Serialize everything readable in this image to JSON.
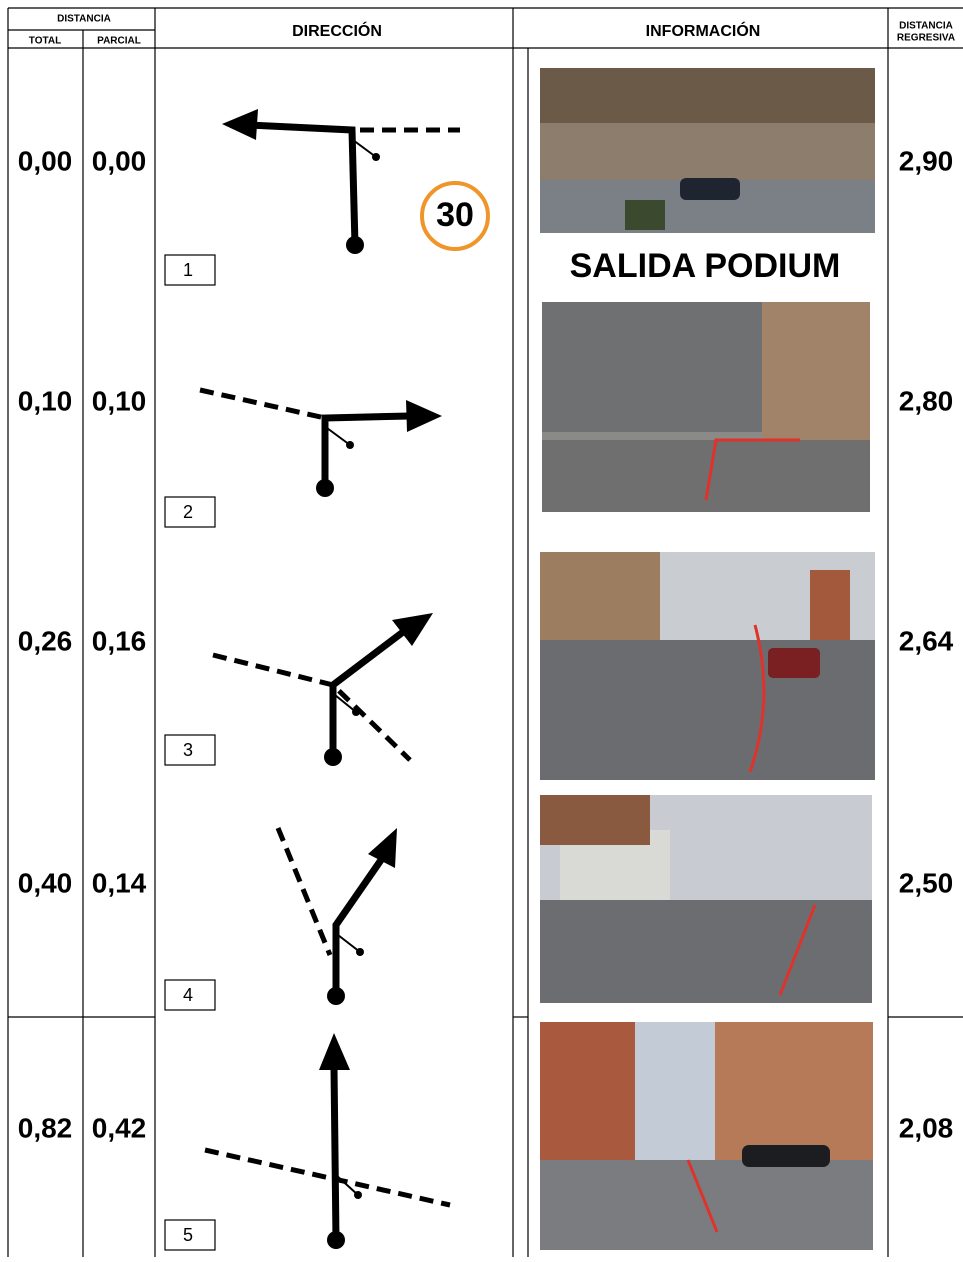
{
  "header": {
    "distancia": "DISTANCIA",
    "total": "TOTAL",
    "parcial": "PARCIAL",
    "direccion": "DIRECCIÓN",
    "informacion": "INFORMACIÓN",
    "regresiva_1": "DISTANCIA",
    "regresiva_2": "REGRESIVA"
  },
  "rows": [
    {
      "total": "0,00",
      "parcial": "0,00",
      "step": "1",
      "regresiva": "2,90",
      "note": "SALIDA PODIUM",
      "speed_limit": "30"
    },
    {
      "total": "0,10",
      "parcial": "0,10",
      "step": "2",
      "regresiva": "2,80"
    },
    {
      "total": "0,26",
      "parcial": "0,16",
      "step": "3",
      "regresiva": "2,64"
    },
    {
      "total": "0,40",
      "parcial": "0,14",
      "step": "4",
      "regresiva": "2,50"
    },
    {
      "total": "0,82",
      "parcial": "0,42",
      "step": "5",
      "regresiva": "2,08"
    }
  ]
}
